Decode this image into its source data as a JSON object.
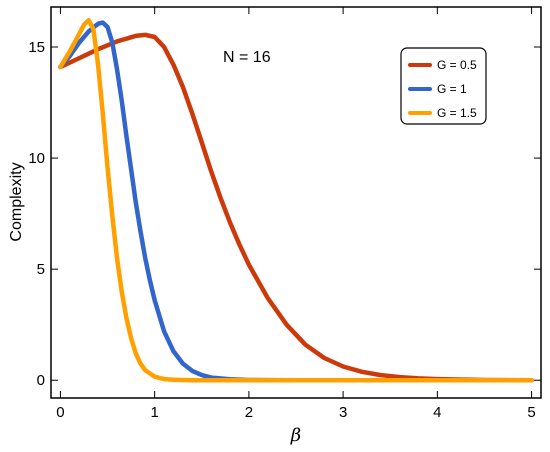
{
  "chart_data": {
    "type": "line",
    "xlabel": "β",
    "ylabel": "Complexity",
    "annotation": "N = 16",
    "xlim": [
      -0.1,
      5.1
    ],
    "ylim": [
      -0.8,
      16.8
    ],
    "xticks": [
      0,
      1,
      2,
      3,
      4,
      5
    ],
    "yticks": [
      0,
      5,
      10,
      15
    ],
    "grid": false,
    "legend_position": "top-right",
    "series": [
      {
        "name": "G = 0.5",
        "color": "#CC3A0C",
        "x": [
          0,
          0.2,
          0.4,
          0.6,
          0.8,
          0.9,
          1.0,
          1.1,
          1.2,
          1.3,
          1.4,
          1.5,
          1.6,
          1.7,
          1.8,
          1.9,
          2.0,
          2.2,
          2.4,
          2.6,
          2.8,
          3.0,
          3.2,
          3.4,
          3.6,
          3.8,
          4.0,
          4.5,
          5.0
        ],
        "y": [
          14.1,
          14.5,
          14.9,
          15.25,
          15.5,
          15.55,
          15.45,
          15.0,
          14.2,
          13.2,
          12.0,
          10.7,
          9.4,
          8.2,
          7.1,
          6.1,
          5.2,
          3.7,
          2.5,
          1.6,
          1.0,
          0.62,
          0.38,
          0.23,
          0.14,
          0.08,
          0.05,
          0.01,
          0.0
        ]
      },
      {
        "name": "G = 1",
        "color": "#3366CC",
        "x": [
          0,
          0.1,
          0.2,
          0.3,
          0.4,
          0.45,
          0.5,
          0.55,
          0.6,
          0.65,
          0.7,
          0.75,
          0.8,
          0.85,
          0.9,
          0.95,
          1.0,
          1.1,
          1.2,
          1.3,
          1.4,
          1.5,
          1.6,
          1.8,
          2.0,
          2.5,
          5.0
        ],
        "y": [
          14.1,
          14.6,
          15.2,
          15.7,
          16.05,
          16.1,
          15.9,
          15.2,
          14.0,
          12.6,
          11.0,
          9.5,
          8.0,
          6.7,
          5.5,
          4.5,
          3.6,
          2.2,
          1.3,
          0.75,
          0.42,
          0.23,
          0.12,
          0.04,
          0.01,
          0.0,
          0.0
        ]
      },
      {
        "name": "G = 1.5",
        "color": "#FFA000",
        "x": [
          0,
          0.1,
          0.2,
          0.25,
          0.3,
          0.35,
          0.4,
          0.45,
          0.5,
          0.55,
          0.6,
          0.65,
          0.7,
          0.75,
          0.8,
          0.85,
          0.9,
          1.0,
          1.1,
          1.2,
          1.4,
          1.6,
          2.0,
          5.0
        ],
        "y": [
          14.1,
          14.8,
          15.6,
          16.0,
          16.2,
          15.8,
          14.2,
          12.0,
          9.6,
          7.4,
          5.5,
          4.0,
          2.8,
          1.9,
          1.2,
          0.75,
          0.45,
          0.16,
          0.05,
          0.02,
          0.0,
          0.0,
          0.0,
          0.0
        ]
      }
    ]
  }
}
